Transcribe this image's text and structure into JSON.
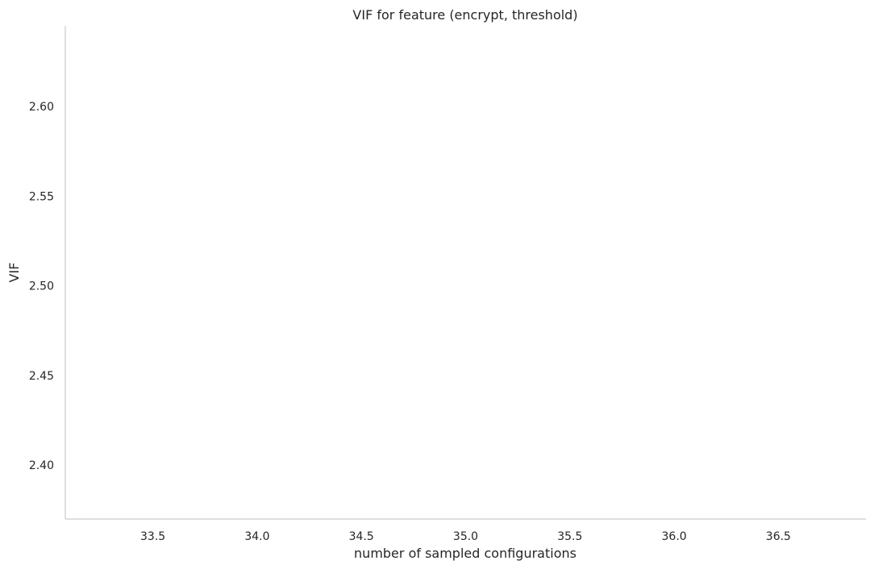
{
  "chart_data": {
    "type": "line",
    "title": "VIF for feature (encrypt, threshold)",
    "xlabel": "number of sampled configurations",
    "ylabel": "VIF",
    "xlim": [
      33.08,
      36.92
    ],
    "ylim": [
      2.37,
      2.645
    ],
    "xticks": [
      33.5,
      34.0,
      34.5,
      35.0,
      35.5,
      36.0,
      36.5
    ],
    "xtick_labels": [
      "33.5",
      "34.0",
      "34.5",
      "35.0",
      "35.5",
      "36.0",
      "36.5"
    ],
    "yticks": [
      2.4,
      2.45,
      2.5,
      2.55,
      2.6
    ],
    "ytick_labels": [
      "2.40",
      "2.45",
      "2.50",
      "2.55",
      "2.60"
    ],
    "grid": false,
    "series": []
  }
}
